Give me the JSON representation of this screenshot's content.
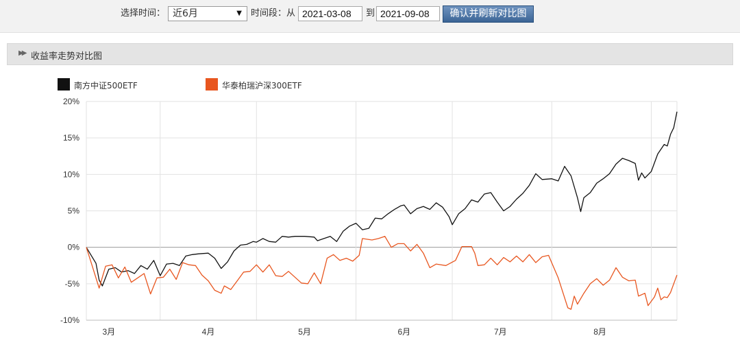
{
  "filter": {
    "period_label": "选择时间：",
    "period_value": "近6月",
    "range_label": "时间段：从",
    "start_date": "2021-03-08",
    "to_label": "到",
    "end_date": "2021-09-08",
    "confirm_label": "确认并刷新对比图"
  },
  "section": {
    "title": "收益率走势对比图"
  },
  "chart_data": {
    "type": "line",
    "title": "",
    "xlabel": "",
    "ylabel": "",
    "x_range": [
      "2021-03-08",
      "2021-09-08"
    ],
    "ylim": [
      -10,
      20
    ],
    "yticks": [
      {
        "value": 20,
        "label": "20%"
      },
      {
        "value": 15,
        "label": "15%"
      },
      {
        "value": 10,
        "label": "10%"
      },
      {
        "value": 5,
        "label": "5%"
      },
      {
        "value": 0,
        "label": "0%"
      },
      {
        "value": -5,
        "label": "-5%"
      },
      {
        "value": -10,
        "label": "-10%"
      }
    ],
    "xticks": [
      {
        "date": "2021-03-15",
        "label": "3月"
      },
      {
        "date": "2021-04-15",
        "label": "4月"
      },
      {
        "date": "2021-05-15",
        "label": "5月"
      },
      {
        "date": "2021-06-15",
        "label": "6月"
      },
      {
        "date": "2021-07-15",
        "label": "7月"
      },
      {
        "date": "2021-08-15",
        "label": "8月"
      }
    ],
    "gridlines": [
      "2021-03-31",
      "2021-04-30",
      "2021-05-31",
      "2021-06-30",
      "2021-07-31",
      "2021-08-31"
    ],
    "grid": true,
    "legend_position": "top-left",
    "series": [
      {
        "name": "南方中证500ETF",
        "color": "#111111",
        "points": [
          [
            "2021-03-08",
            0
          ],
          [
            "2021-03-11",
            -2.2
          ],
          [
            "2021-03-12",
            -4.5
          ],
          [
            "2021-03-13",
            -5.3
          ],
          [
            "2021-03-15",
            -3
          ],
          [
            "2021-03-17",
            -2.8
          ],
          [
            "2021-03-19",
            -3.4
          ],
          [
            "2021-03-21",
            -3.2
          ],
          [
            "2021-03-23",
            -3.6
          ],
          [
            "2021-03-25",
            -2.5
          ],
          [
            "2021-03-27",
            -3
          ],
          [
            "2021-03-29",
            -1.8
          ],
          [
            "2021-03-31",
            -3.9
          ],
          [
            "2021-04-02",
            -2.3
          ],
          [
            "2021-04-04",
            -2.2
          ],
          [
            "2021-04-06",
            -2.5
          ],
          [
            "2021-04-08",
            -1.2
          ],
          [
            "2021-04-10",
            -1
          ],
          [
            "2021-04-12",
            -0.9
          ],
          [
            "2021-04-15",
            -0.8
          ],
          [
            "2021-04-17",
            -1.5
          ],
          [
            "2021-04-19",
            -2.9
          ],
          [
            "2021-04-21",
            -2
          ],
          [
            "2021-04-23",
            -0.5
          ],
          [
            "2021-04-25",
            0.3
          ],
          [
            "2021-04-27",
            0.4
          ],
          [
            "2021-04-29",
            0.8
          ],
          [
            "2021-04-30",
            0.7
          ],
          [
            "2021-05-02",
            1.2
          ],
          [
            "2021-05-04",
            0.8
          ],
          [
            "2021-05-06",
            0.7
          ],
          [
            "2021-05-08",
            1.5
          ],
          [
            "2021-05-10",
            1.4
          ],
          [
            "2021-05-12",
            1.5
          ],
          [
            "2021-05-15",
            1.5
          ],
          [
            "2021-05-18",
            1.4
          ],
          [
            "2021-05-19",
            0.9
          ],
          [
            "2021-05-21",
            1.2
          ],
          [
            "2021-05-23",
            1.5
          ],
          [
            "2021-05-25",
            0.8
          ],
          [
            "2021-05-27",
            2.2
          ],
          [
            "2021-05-29",
            2.9
          ],
          [
            "2021-05-31",
            3.3
          ],
          [
            "2021-06-02",
            2.4
          ],
          [
            "2021-06-04",
            2.6
          ],
          [
            "2021-06-06",
            4.0
          ],
          [
            "2021-06-08",
            3.9
          ],
          [
            "2021-06-10",
            4.6
          ],
          [
            "2021-06-12",
            5.2
          ],
          [
            "2021-06-14",
            5.7
          ],
          [
            "2021-06-15",
            5.8
          ],
          [
            "2021-06-17",
            4.6
          ],
          [
            "2021-06-19",
            5.3
          ],
          [
            "2021-06-21",
            5.6
          ],
          [
            "2021-06-23",
            5.2
          ],
          [
            "2021-06-25",
            6.1
          ],
          [
            "2021-06-27",
            5.5
          ],
          [
            "2021-06-29",
            4.2
          ],
          [
            "2021-06-30",
            3.1
          ],
          [
            "2021-07-02",
            4.6
          ],
          [
            "2021-07-04",
            5.3
          ],
          [
            "2021-07-06",
            6.5
          ],
          [
            "2021-07-08",
            6.2
          ],
          [
            "2021-07-10",
            7.3
          ],
          [
            "2021-07-12",
            7.5
          ],
          [
            "2021-07-14",
            6.2
          ],
          [
            "2021-07-16",
            5
          ],
          [
            "2021-07-18",
            5.6
          ],
          [
            "2021-07-20",
            6.6
          ],
          [
            "2021-07-22",
            7.4
          ],
          [
            "2021-07-24",
            8.5
          ],
          [
            "2021-07-26",
            10.1
          ],
          [
            "2021-07-28",
            9.3
          ],
          [
            "2021-07-31",
            9.4
          ],
          [
            "2021-08-02",
            9.1
          ],
          [
            "2021-08-04",
            11.1
          ],
          [
            "2021-08-06",
            9.8
          ],
          [
            "2021-08-08",
            6.8
          ],
          [
            "2021-08-09",
            4.9
          ],
          [
            "2021-08-10",
            6.8
          ],
          [
            "2021-08-12",
            7.5
          ],
          [
            "2021-08-14",
            8.8
          ],
          [
            "2021-08-16",
            9.4
          ],
          [
            "2021-08-18",
            10.1
          ],
          [
            "2021-08-20",
            11.4
          ],
          [
            "2021-08-22",
            12.2
          ],
          [
            "2021-08-24",
            11.9
          ],
          [
            "2021-08-26",
            11.5
          ],
          [
            "2021-08-27",
            9.2
          ],
          [
            "2021-08-28",
            10.2
          ],
          [
            "2021-08-29",
            9.5
          ],
          [
            "2021-08-31",
            10.4
          ],
          [
            "2021-09-02",
            12.8
          ],
          [
            "2021-09-04",
            14.1
          ],
          [
            "2021-09-05",
            13.9
          ],
          [
            "2021-09-06",
            15.5
          ],
          [
            "2021-09-07",
            16.4
          ],
          [
            "2021-09-08",
            18.6
          ]
        ]
      },
      {
        "name": "华泰柏瑞沪深300ETF",
        "color": "#e8561f",
        "points": [
          [
            "2021-03-08",
            0
          ],
          [
            "2021-03-10",
            -2.8
          ],
          [
            "2021-03-12",
            -5.6
          ],
          [
            "2021-03-14",
            -2.6
          ],
          [
            "2021-03-16",
            -2.4
          ],
          [
            "2021-03-18",
            -4.2
          ],
          [
            "2021-03-20",
            -2.7
          ],
          [
            "2021-03-22",
            -4.8
          ],
          [
            "2021-03-24",
            -4.2
          ],
          [
            "2021-03-26",
            -3.6
          ],
          [
            "2021-03-28",
            -6.4
          ],
          [
            "2021-03-30",
            -4.2
          ],
          [
            "2021-04-01",
            -4.1
          ],
          [
            "2021-04-03",
            -3.0
          ],
          [
            "2021-04-05",
            -4.4
          ],
          [
            "2021-04-07",
            -2.1
          ],
          [
            "2021-04-09",
            -2.4
          ],
          [
            "2021-04-11",
            -2.5
          ],
          [
            "2021-04-13",
            -3.8
          ],
          [
            "2021-04-15",
            -4.6
          ],
          [
            "2021-04-17",
            -5.9
          ],
          [
            "2021-04-19",
            -6.3
          ],
          [
            "2021-04-20",
            -5.3
          ],
          [
            "2021-04-22",
            -5.8
          ],
          [
            "2021-04-24",
            -4.6
          ],
          [
            "2021-04-26",
            -3.4
          ],
          [
            "2021-04-28",
            -3.3
          ],
          [
            "2021-04-30",
            -2.4
          ],
          [
            "2021-05-02",
            -3.4
          ],
          [
            "2021-05-04",
            -2.4
          ],
          [
            "2021-05-06",
            -3.9
          ],
          [
            "2021-05-08",
            -4.0
          ],
          [
            "2021-05-10",
            -3.3
          ],
          [
            "2021-05-14",
            -4.9
          ],
          [
            "2021-05-16",
            -5.0
          ],
          [
            "2021-05-18",
            -3.5
          ],
          [
            "2021-05-20",
            -5.0
          ],
          [
            "2021-05-22",
            -1.5
          ],
          [
            "2021-05-24",
            -1.0
          ],
          [
            "2021-05-26",
            -1.8
          ],
          [
            "2021-05-28",
            -1.5
          ],
          [
            "2021-05-30",
            -1.9
          ],
          [
            "2021-06-01",
            -1.1
          ],
          [
            "2021-06-02",
            1.2
          ],
          [
            "2021-06-05",
            1.0
          ],
          [
            "2021-06-07",
            1.2
          ],
          [
            "2021-06-09",
            1.5
          ],
          [
            "2021-06-11",
            0
          ],
          [
            "2021-06-13",
            0.5
          ],
          [
            "2021-06-15",
            0.5
          ],
          [
            "2021-06-17",
            -0.5
          ],
          [
            "2021-06-19",
            0.4
          ],
          [
            "2021-06-21",
            -0.8
          ],
          [
            "2021-06-23",
            -2.8
          ],
          [
            "2021-06-25",
            -2.3
          ],
          [
            "2021-06-28",
            -2.5
          ],
          [
            "2021-07-01",
            -1.8
          ],
          [
            "2021-07-03",
            0.1
          ],
          [
            "2021-07-06",
            0.1
          ],
          [
            "2021-07-07",
            -0.8
          ],
          [
            "2021-07-08",
            -2.5
          ],
          [
            "2021-07-10",
            -2.4
          ],
          [
            "2021-07-12",
            -1.5
          ],
          [
            "2021-07-14",
            -2.4
          ],
          [
            "2021-07-16",
            -1.4
          ],
          [
            "2021-07-18",
            -2.0
          ],
          [
            "2021-07-20",
            -1.2
          ],
          [
            "2021-07-22",
            -2.0
          ],
          [
            "2021-07-24",
            -1.0
          ],
          [
            "2021-07-26",
            -2.1
          ],
          [
            "2021-07-28",
            -1.3
          ],
          [
            "2021-07-30",
            -1.1
          ],
          [
            "2021-08-02",
            -4.2
          ],
          [
            "2021-08-05",
            -8.3
          ],
          [
            "2021-08-06",
            -8.5
          ],
          [
            "2021-08-07",
            -6.7
          ],
          [
            "2021-08-08",
            -7.8
          ],
          [
            "2021-08-10",
            -6.3
          ],
          [
            "2021-08-12",
            -5.0
          ],
          [
            "2021-08-14",
            -4.3
          ],
          [
            "2021-08-16",
            -5.2
          ],
          [
            "2021-08-18",
            -4.5
          ],
          [
            "2021-08-20",
            -2.8
          ],
          [
            "2021-08-22",
            -4.1
          ],
          [
            "2021-08-24",
            -4.6
          ],
          [
            "2021-08-26",
            -4.5
          ],
          [
            "2021-08-27",
            -6.7
          ],
          [
            "2021-08-29",
            -6.3
          ],
          [
            "2021-08-30",
            -8.0
          ],
          [
            "2021-09-01",
            -6.8
          ],
          [
            "2021-09-02",
            -5.6
          ],
          [
            "2021-09-03",
            -7.2
          ],
          [
            "2021-09-04",
            -6.8
          ],
          [
            "2021-09-05",
            -6.9
          ],
          [
            "2021-09-06",
            -6.2
          ],
          [
            "2021-09-07",
            -5.0
          ],
          [
            "2021-09-08",
            -3.8
          ]
        ]
      }
    ]
  }
}
